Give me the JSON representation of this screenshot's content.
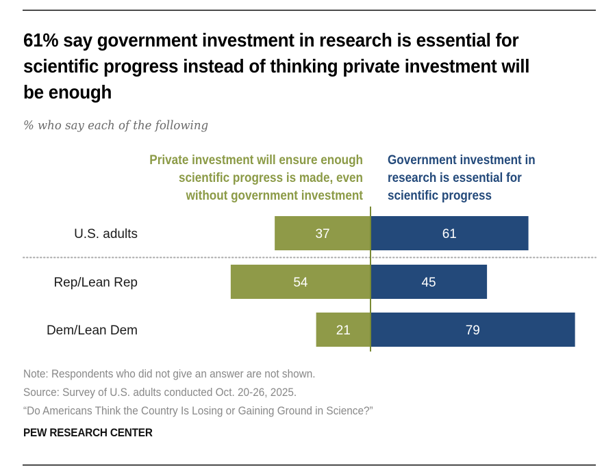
{
  "header": {
    "title": "61% say government investment in research is essential for scientific progress instead of thinking private investment will be enough",
    "subtitle": "% who say each of the following"
  },
  "legend": {
    "left": [
      "Private investment will ensure enough",
      "scientific progress is made, even",
      "without government investment"
    ],
    "right": [
      "Government investment in",
      "research is essential for",
      "scientific progress"
    ]
  },
  "chart_data": {
    "type": "bar",
    "orientation": "horizontal-diverging",
    "title": "61% say government investment in research is essential for scientific progress instead of thinking private investment will be enough",
    "subtitle": "% who say each of the following",
    "categories": [
      "U.S. adults",
      "Rep/Lean Rep",
      "Dem/Lean Dem"
    ],
    "series": [
      {
        "name": "Private investment will ensure enough scientific progress is made, even without government investment",
        "direction": "left",
        "color": "#8f9a48",
        "values": [
          37,
          54,
          21
        ]
      },
      {
        "name": "Government investment in research is essential for scientific progress",
        "direction": "right",
        "color": "#23497a",
        "values": [
          61,
          45,
          79
        ]
      }
    ],
    "xlim": [
      0,
      100
    ],
    "separator_after_index": 0,
    "grid": false,
    "xlabel": "",
    "ylabel": "",
    "legend_position": "top"
  },
  "footer": {
    "note": "Note: Respondents who did not give an answer are not shown.",
    "source": "Source: Survey of U.S. adults conducted Oct. 20-26, 2025.",
    "report": "“Do Americans Think the Country Is Losing or Gaining Ground in Science?”",
    "brand": "PEW RESEARCH CENTER"
  }
}
